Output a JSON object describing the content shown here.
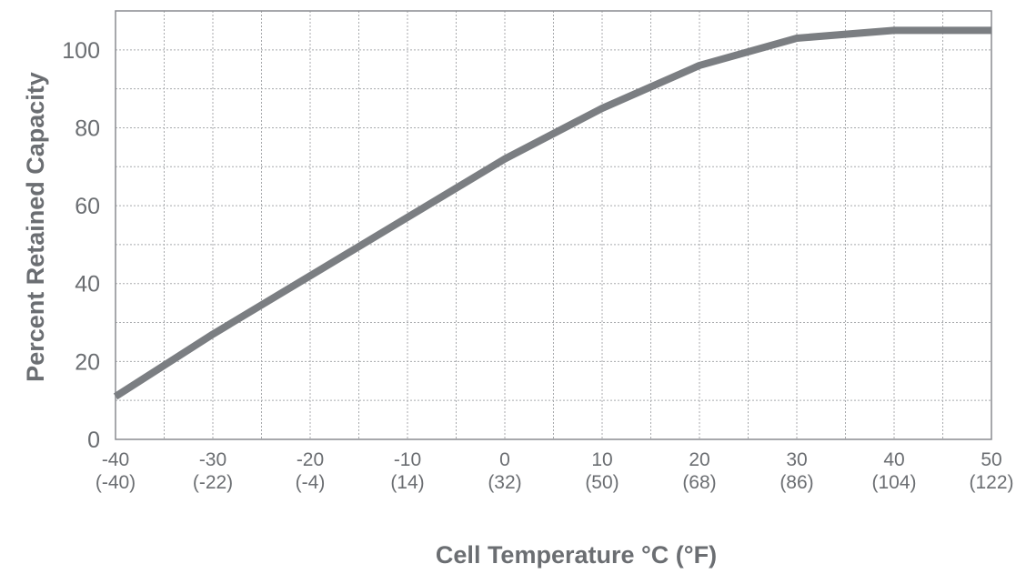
{
  "chart_data": {
    "type": "line",
    "title": "",
    "xlabel": "Cell Temperature °C (°F)",
    "ylabel": "Percent Retained Capacity",
    "xlim": [
      -40,
      50
    ],
    "ylim": [
      0,
      110
    ],
    "x_ticks": [
      {
        "c": "-40",
        "f": "(-40)"
      },
      {
        "c": "-30",
        "f": "(-22)"
      },
      {
        "c": "-20",
        "f": "(-4)"
      },
      {
        "c": "-10",
        "f": "(14)"
      },
      {
        "c": "0",
        "f": "(32)"
      },
      {
        "c": "10",
        "f": "(50)"
      },
      {
        "c": "20",
        "f": "(68)"
      },
      {
        "c": "30",
        "f": "(86)"
      },
      {
        "c": "40",
        "f": "(104)"
      },
      {
        "c": "50",
        "f": "(122)"
      }
    ],
    "y_ticks": [
      "0",
      "20",
      "40",
      "60",
      "80",
      "100"
    ],
    "grid": true,
    "series": [
      {
        "x": [
          -40,
          -30,
          -20,
          -10,
          0,
          10,
          20,
          30,
          40,
          50
        ],
        "y": [
          11,
          27,
          42,
          57,
          72,
          85,
          96,
          103,
          105,
          105
        ]
      }
    ],
    "colors": {
      "line": "#7b7e82",
      "grid": "#a8aaad",
      "frame": "#8a8c90",
      "text": "#6b6e72"
    }
  }
}
